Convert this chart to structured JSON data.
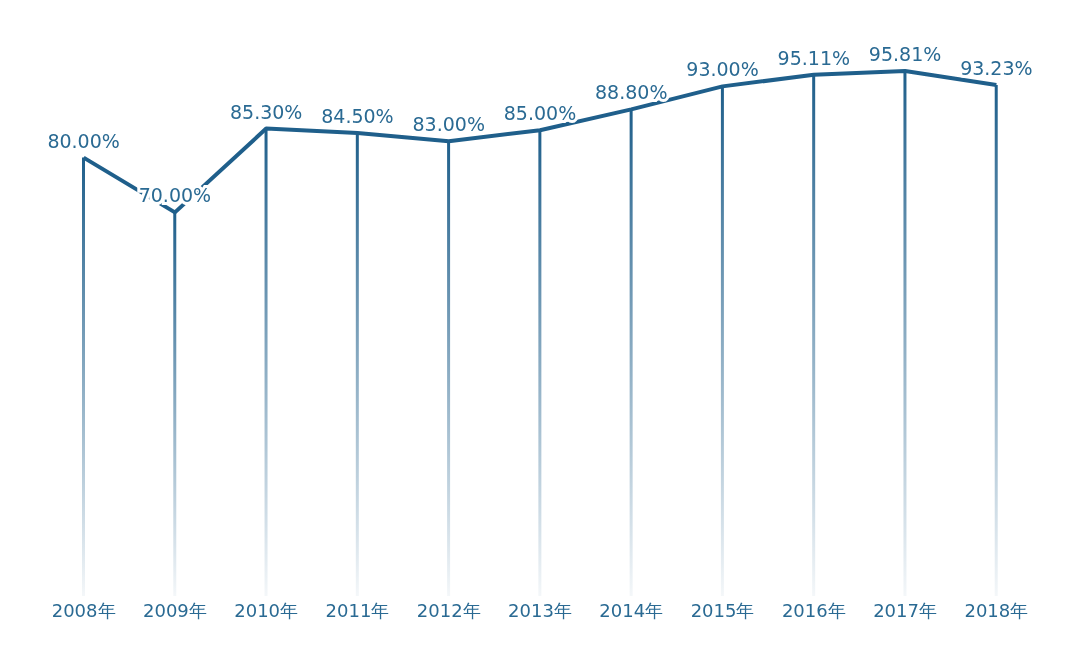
{
  "chart_data": {
    "type": "line",
    "categories": [
      "2008年",
      "2009年",
      "2010年",
      "2011年",
      "2012年",
      "2013年",
      "2014年",
      "2015年",
      "2016年",
      "2017年",
      "2018年"
    ],
    "series": [
      {
        "type": "bar",
        "color": "#1f5f8b",
        "values": [
          80.0,
          70.0,
          85.3,
          84.5,
          83.0,
          85.0,
          88.8,
          93.0,
          95.11,
          95.81,
          93.23
        ]
      },
      {
        "color": "#1f5f8b",
        "values": [
          80.0,
          70.0,
          85.3,
          84.5,
          83.0,
          85.0,
          88.8,
          93.0,
          95.11,
          95.81,
          93.23
        ],
        "value_labels": [
          "80.00%",
          "70.00%",
          "85.30%",
          "84.50%",
          "83.00%",
          "85.00%",
          "88.80%",
          "93.00%",
          "95.11%",
          "95.81%",
          "93.23%"
        ]
      }
    ],
    "tick_labels": "x",
    "marker": "none",
    "line_style": "solid"
  }
}
